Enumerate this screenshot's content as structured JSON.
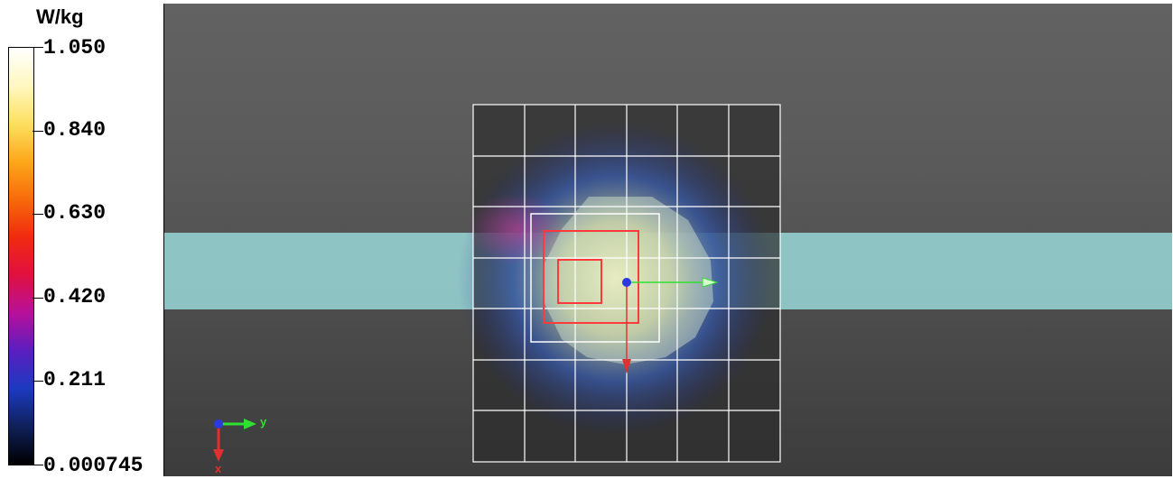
{
  "legend": {
    "unit": "W/kg",
    "ticks": [
      {
        "value": "1.050",
        "position": 1.0
      },
      {
        "value": "0.840",
        "position": 0.8
      },
      {
        "value": "0.630",
        "position": 0.6
      },
      {
        "value": "0.420",
        "position": 0.4
      },
      {
        "value": "0.211",
        "position": 0.2
      },
      {
        "value": "0.000745",
        "position": 0.0
      }
    ],
    "colors": [
      "#000000",
      "#10205a",
      "#1c3ac0",
      "#5a1ec0",
      "#b8109a",
      "#e01040",
      "#f02a10",
      "#f86a0a",
      "#fca81a",
      "#fde060",
      "#fff8c0",
      "#ffffff"
    ]
  },
  "viewport": {
    "background_top": "#626262",
    "background_bottom": "#3c3c3c",
    "phantom_color": "#9ad8d8",
    "grid_color": "#ffffff",
    "box_color": "#ff3a3a",
    "axes": {
      "y_label": "y",
      "x_label": "x",
      "y_color": "#30e030",
      "x_color": "#e03030",
      "z_color": "#2a3ae0"
    }
  }
}
